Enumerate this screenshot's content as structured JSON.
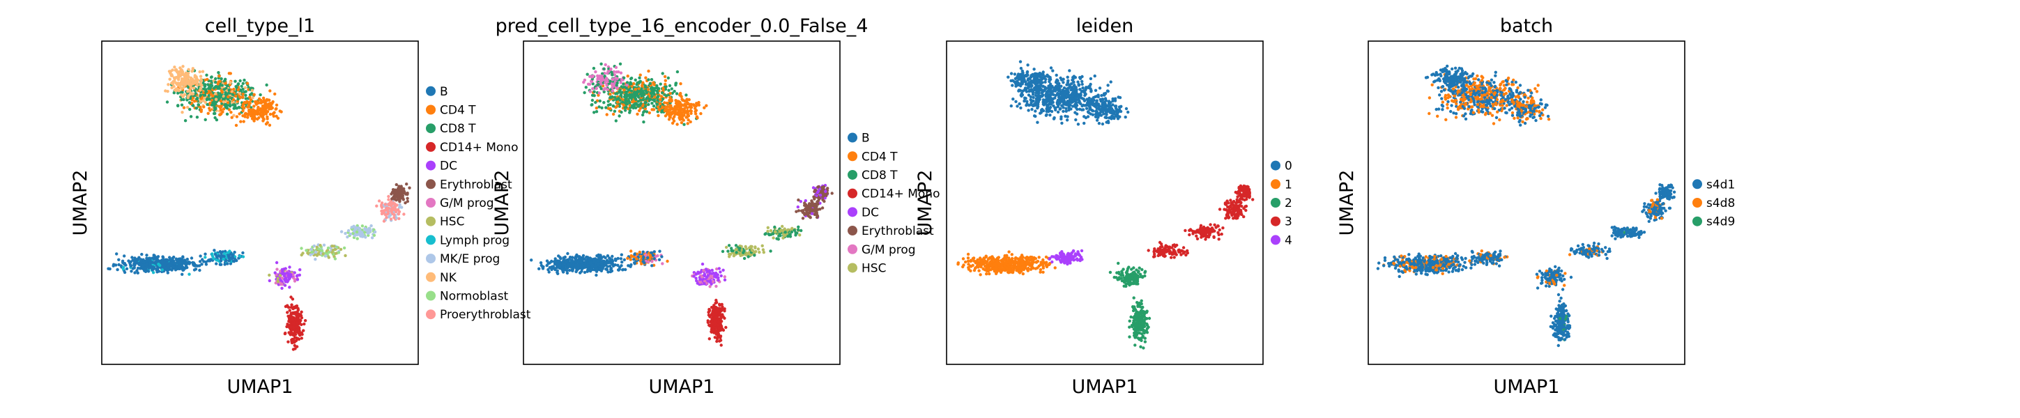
{
  "colors": {
    "tab10": [
      "#1f77b4",
      "#ff7f0e",
      "#279e68",
      "#d62728",
      "#aa40fc",
      "#8c564b",
      "#e377c2",
      "#b5bd61",
      "#17becf",
      "#aec7e8",
      "#ffbb78",
      "#98df8a",
      "#ff9896"
    ]
  },
  "chart_data": [
    {
      "type": "scatter",
      "title": "cell_type_l1",
      "xlabel": "UMAP1",
      "ylabel": "UMAP2",
      "legend_position": "right",
      "grid": false,
      "categories": [
        "B",
        "CD4 T",
        "CD8 T",
        "CD14+ Mono",
        "DC",
        "Erythroblast",
        "G/M prog",
        "HSC",
        "Lymph prog",
        "MK/E prog",
        "NK",
        "Normoblast",
        "Proerythroblast"
      ]
    },
    {
      "type": "scatter",
      "title": "pred_cell_type_16_encoder_0.0_False_4",
      "xlabel": "UMAP1",
      "ylabel": "UMAP2",
      "legend_position": "right",
      "grid": false,
      "categories": [
        "B",
        "CD4 T",
        "CD8 T",
        "CD14+ Mono",
        "DC",
        "Erythroblast",
        "G/M prog",
        "HSC"
      ]
    },
    {
      "type": "scatter",
      "title": "leiden",
      "xlabel": "UMAP1",
      "ylabel": "UMAP2",
      "legend_position": "right",
      "grid": false,
      "categories": [
        "0",
        "1",
        "2",
        "3",
        "4"
      ]
    },
    {
      "type": "scatter",
      "title": "batch",
      "xlabel": "UMAP1",
      "ylabel": "UMAP2",
      "legend_position": "right",
      "grid": false,
      "categories": [
        "s4d1",
        "s4d8",
        "s4d9"
      ]
    }
  ]
}
